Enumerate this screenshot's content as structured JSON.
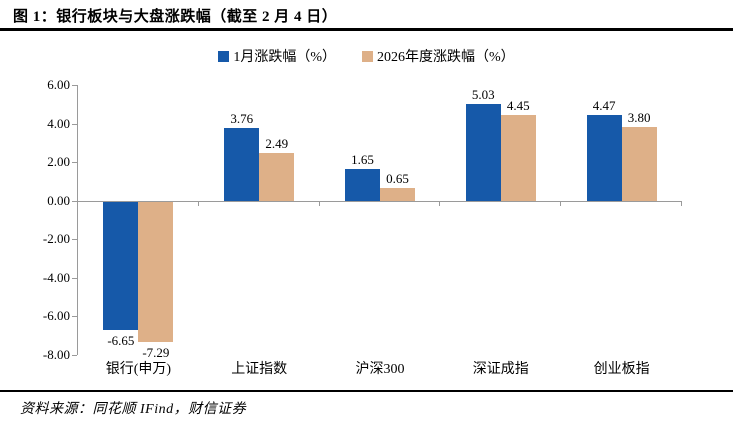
{
  "figure": {
    "title": "图 1：银行板块与大盘涨跌幅（截至 2 月 4 日）",
    "source": "资料来源：同花顺 IFind，财信证券"
  },
  "chart_data": {
    "type": "bar",
    "title": "银行板块与大盘涨跌幅（截至 2 月 4 日）",
    "categories": [
      "银行(申万)",
      "上证指数",
      "沪深300",
      "深证成指",
      "创业板指"
    ],
    "series": [
      {
        "name": "1月涨跌幅（%）",
        "color": "#1659a9",
        "values": [
          -6.65,
          3.76,
          1.65,
          5.03,
          4.47
        ],
        "labels": [
          "-6.65",
          "3.76",
          "1.65",
          "5.03",
          "4.47"
        ]
      },
      {
        "name": "2026年度涨跌幅（%）",
        "color": "#deb088",
        "values": [
          -7.29,
          2.49,
          0.65,
          4.45,
          3.8
        ],
        "labels": [
          "-7.29",
          "2.49",
          "0.65",
          "4.45",
          "3.80"
        ]
      }
    ],
    "xlabel": "",
    "ylabel": "",
    "ylim": [
      -8,
      6
    ],
    "ytick_step": 2,
    "yticks": [
      "6.00",
      "4.00",
      "2.00",
      "0.00",
      "-2.00",
      "-4.00",
      "-6.00",
      "-8.00"
    ],
    "grid": false,
    "legend_position": "top"
  }
}
